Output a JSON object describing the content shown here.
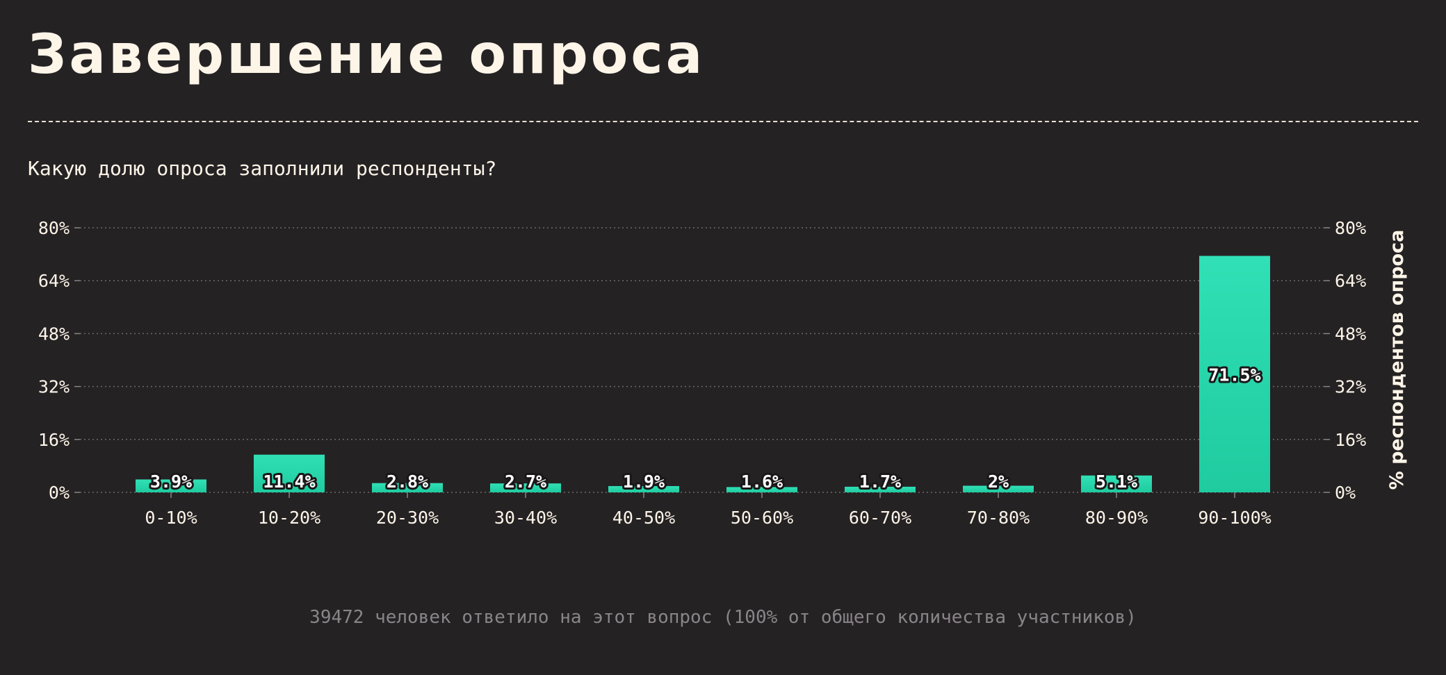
{
  "header": {
    "title": "Завершение опроса"
  },
  "question": "Какую долю опроса заполнили респонденты?",
  "footer_note": "39472 человек ответило на этот вопрос (100% от общего количества участников)",
  "colors": {
    "background": "#252224",
    "bar_top": "#31e0b6",
    "bar_bottom": "#1fcb9f",
    "text": "#fdf5e8",
    "muted": "#8a8588"
  },
  "chart_data": {
    "type": "bar",
    "categories": [
      "0-10%",
      "10-20%",
      "20-30%",
      "30-40%",
      "40-50%",
      "50-60%",
      "60-70%",
      "70-80%",
      "80-90%",
      "90-100%"
    ],
    "values": [
      3.9,
      11.4,
      2.8,
      2.7,
      1.9,
      1.6,
      1.7,
      2,
      5.1,
      71.5
    ],
    "value_labels": [
      "3.9%",
      "11.4%",
      "2.8%",
      "2.7%",
      "1.9%",
      "1.6%",
      "1.7%",
      "2%",
      "5.1%",
      "71.5%"
    ],
    "yticks": [
      0,
      16,
      32,
      48,
      64,
      80
    ],
    "ytick_labels": [
      "0%",
      "16%",
      "32%",
      "48%",
      "64%",
      "80%"
    ],
    "ylim": [
      0,
      80
    ],
    "ylabel": "% респондентов опроса",
    "grid": true,
    "y_axis_both_sides": true
  }
}
